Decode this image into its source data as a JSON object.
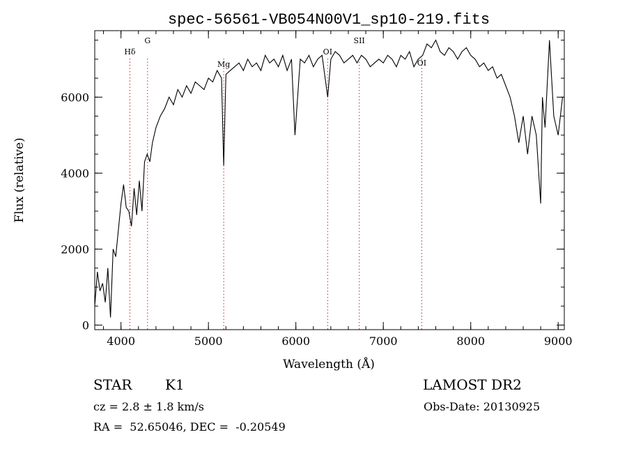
{
  "chart_data": {
    "type": "line",
    "title": "spec-56561-VB054N00V1_sp10-219.fits",
    "xlabel": "Wavelength (Å)",
    "ylabel": "Flux (relative)",
    "xlim": [
      3700,
      9070
    ],
    "ylim": [
      -120,
      7750
    ],
    "x_ticks": [
      4000,
      5000,
      6000,
      7000,
      8000,
      9000
    ],
    "y_ticks": [
      0,
      2000,
      4000,
      6000
    ],
    "x_minor_step": 200,
    "y_minor_step": 500,
    "grid": false,
    "line_color": "#000000",
    "marker_color": "#cc2222",
    "spectral_lines": [
      {
        "label": "Hδ",
        "wavelength": 4102
      },
      {
        "label": "G",
        "wavelength": 4304
      },
      {
        "label": "Mg",
        "wavelength": 5175
      },
      {
        "label": "OI",
        "wavelength": 6364
      },
      {
        "label": "SII",
        "wavelength": 6725
      },
      {
        "label": "OI",
        "wavelength": 7440
      }
    ],
    "series": [
      {
        "x": [
          3700,
          3730,
          3760,
          3790,
          3820,
          3850,
          3880,
          3910,
          3940,
          3970,
          4000,
          4030,
          4060,
          4090,
          4120,
          4150,
          4180,
          4210,
          4240,
          4270,
          4300,
          4330,
          4360,
          4400,
          4450,
          4500,
          4550,
          4600,
          4650,
          4700,
          4750,
          4800,
          4850,
          4900,
          4950,
          5000,
          5050,
          5100,
          5150,
          5175,
          5200,
          5250,
          5300,
          5350,
          5400,
          5450,
          5500,
          5550,
          5600,
          5650,
          5700,
          5750,
          5800,
          5850,
          5900,
          5950,
          5990,
          6050,
          6100,
          6150,
          6200,
          6250,
          6300,
          6364,
          6400,
          6450,
          6500,
          6550,
          6600,
          6650,
          6700,
          6750,
          6800,
          6850,
          6900,
          6950,
          7000,
          7050,
          7100,
          7150,
          7200,
          7250,
          7300,
          7350,
          7400,
          7450,
          7500,
          7550,
          7600,
          7650,
          7700,
          7750,
          7800,
          7850,
          7900,
          7950,
          8000,
          8050,
          8100,
          8150,
          8200,
          8250,
          8300,
          8350,
          8400,
          8450,
          8500,
          8550,
          8600,
          8650,
          8700,
          8750,
          8800,
          8820,
          8850,
          8900,
          8950,
          9000,
          9050
        ],
        "y": [
          500,
          1400,
          900,
          1100,
          600,
          1500,
          200,
          2000,
          1800,
          2500,
          3200,
          3700,
          3100,
          3000,
          2600,
          3600,
          2900,
          3800,
          3000,
          4300,
          4500,
          4300,
          4800,
          5200,
          5500,
          5700,
          6000,
          5800,
          6200,
          6000,
          6300,
          6100,
          6400,
          6300,
          6200,
          6500,
          6400,
          6700,
          6500,
          4200,
          6600,
          6700,
          6800,
          6900,
          6700,
          7000,
          6800,
          6900,
          6700,
          7100,
          6900,
          7000,
          6800,
          7100,
          6700,
          7000,
          5000,
          7000,
          6900,
          7100,
          6800,
          7000,
          7100,
          6000,
          7000,
          7200,
          7100,
          6900,
          7000,
          7100,
          6900,
          7100,
          7000,
          6800,
          6900,
          7000,
          6900,
          7100,
          7000,
          6800,
          7100,
          7000,
          7200,
          6800,
          7000,
          7100,
          7400,
          7300,
          7500,
          7200,
          7100,
          7300,
          7200,
          7000,
          7200,
          7300,
          7100,
          7000,
          6800,
          6900,
          6700,
          6800,
          6500,
          6600,
          6300,
          6000,
          5500,
          4800,
          5500,
          4500,
          5500,
          5000,
          3200,
          6000,
          5200,
          7500,
          5500,
          5000,
          6000
        ]
      }
    ]
  },
  "info": {
    "object_class": "STAR",
    "subclass": "K1",
    "survey": "LAMOST DR2",
    "cz": "cz = 2.8 ± 1.8 km/s",
    "obs_date": "Obs-Date: 20130925",
    "coords": "RA =  52.65046, DEC =  -0.20549"
  }
}
